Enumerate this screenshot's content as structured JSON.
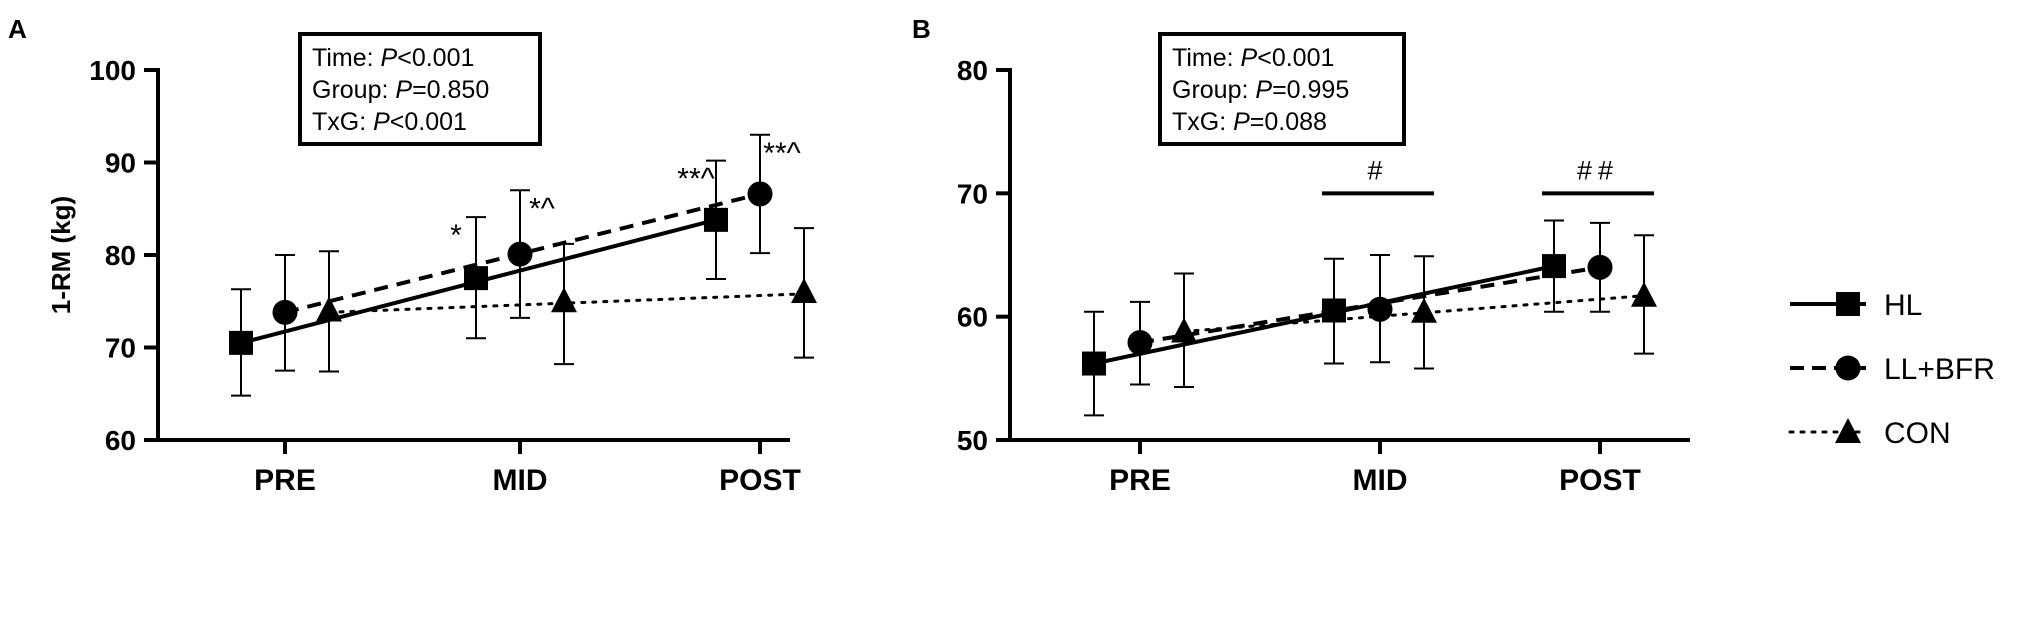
{
  "chart_data": [
    {
      "type": "line",
      "panel": "A",
      "ylabel": "1-RM (kg)",
      "ylim": [
        60,
        100
      ],
      "yticks": [
        60,
        70,
        80,
        90,
        100
      ],
      "categories": [
        "PRE",
        "MID",
        "POST"
      ],
      "stats": [
        {
          "prefix": "Time: ",
          "p": "P",
          "rest": "<0.001"
        },
        {
          "prefix": "Group: ",
          "p": "P",
          "rest": "=0.850"
        },
        {
          "prefix": "TxG: ",
          "p": "P",
          "rest": "<0.001"
        }
      ],
      "series": [
        {
          "name": "HL",
          "marker": "square",
          "line": "solid",
          "values": [
            70.5,
            77.5,
            83.8
          ],
          "err_low": [
            64.8,
            71.0,
            77.4
          ],
          "err_high": [
            76.3,
            84.1,
            90.2
          ],
          "fit": [
            70.5,
            83.8
          ]
        },
        {
          "name": "LL+BFR",
          "marker": "circle",
          "line": "dashed",
          "values": [
            73.8,
            80.1,
            86.6
          ],
          "err_low": [
            67.5,
            73.2,
            80.2
          ],
          "err_high": [
            80.0,
            87.0,
            93.0
          ],
          "fit": [
            73.8,
            86.6
          ]
        },
        {
          "name": "CON",
          "marker": "triangle",
          "line": "dotted",
          "values": [
            74.0,
            75.0,
            76.0
          ],
          "err_low": [
            67.4,
            68.2,
            68.9
          ],
          "err_high": [
            80.4,
            81.2,
            82.9
          ],
          "fit": [
            73.8,
            75.8
          ]
        }
      ],
      "annotations": [
        {
          "text": "*",
          "category": 1,
          "series": 0
        },
        {
          "text": "*^",
          "category": 1,
          "series": 1
        },
        {
          "text": "**^",
          "category": 2,
          "series": 0
        },
        {
          "text": "**^",
          "category": 2,
          "series": 1
        }
      ],
      "significance": []
    },
    {
      "type": "line",
      "panel": "B",
      "ylabel": "",
      "ylim": [
        50,
        80
      ],
      "yticks": [
        50,
        60,
        70,
        80
      ],
      "categories": [
        "PRE",
        "MID",
        "POST"
      ],
      "stats": [
        {
          "prefix": "Time: ",
          "p": "P",
          "rest": "<0.001"
        },
        {
          "prefix": "Group: ",
          "p": "P",
          "rest": "=0.995"
        },
        {
          "prefix": "TxG: ",
          "p": "P",
          "rest": "=0.088"
        }
      ],
      "series": [
        {
          "name": "HL",
          "marker": "square",
          "line": "solid",
          "values": [
            56.2,
            60.5,
            64.1
          ],
          "err_low": [
            52.0,
            56.2,
            60.4
          ],
          "err_high": [
            60.4,
            64.7,
            67.8
          ],
          "fit": [
            56.2,
            64.1
          ]
        },
        {
          "name": "LL+BFR",
          "marker": "circle",
          "line": "dashed",
          "values": [
            57.9,
            60.6,
            64.0
          ],
          "err_low": [
            54.5,
            56.3,
            60.4
          ],
          "err_high": [
            61.2,
            65.0,
            67.6
          ],
          "fit": [
            57.9,
            64.0
          ]
        },
        {
          "name": "CON",
          "marker": "triangle",
          "line": "dotted",
          "values": [
            58.8,
            60.4,
            61.7
          ],
          "err_low": [
            54.3,
            55.8,
            57.0
          ],
          "err_high": [
            63.5,
            64.9,
            66.6
          ],
          "fit": [
            58.8,
            61.7
          ]
        }
      ],
      "annotations": [],
      "significance": [
        {
          "text": "#",
          "category": 1,
          "level": 70
        },
        {
          "text": "##",
          "category": 2,
          "level": 70
        }
      ]
    }
  ],
  "legend": [
    {
      "name": "HL",
      "marker": "square",
      "line": "solid"
    },
    {
      "name": "LL+BFR",
      "marker": "circle",
      "line": "dashed"
    },
    {
      "name": "CON",
      "marker": "triangle",
      "line": "dotted"
    }
  ]
}
